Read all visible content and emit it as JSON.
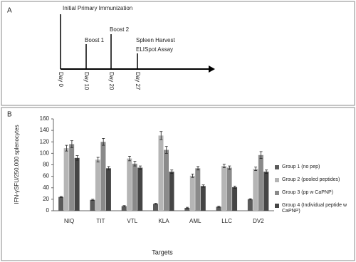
{
  "panel_labels": [
    "A",
    "B"
  ],
  "timeline": {
    "events": [
      "Initial  Primary Immunization",
      "Boost 1",
      "Boost 2",
      "Spleen Harvest",
      "ELISpot Assay"
    ],
    "days": [
      "Day 0",
      "Day 10",
      "Day 20",
      "Day 27"
    ]
  },
  "chart_data": {
    "type": "bar",
    "y_label": "IFN-γSFU/250,000 splenocytes",
    "x_label": "Targets",
    "categories": [
      "NIQ",
      "TIT",
      "VTL",
      "KLA",
      "AML",
      "LLC",
      "DV2"
    ],
    "series": [
      {
        "name": "Group 1 (no pep)",
        "color": "#5a5a5a",
        "values": [
          24,
          19,
          8,
          12,
          5,
          7,
          20
        ],
        "errors": [
          1,
          1,
          1,
          1,
          1,
          1,
          1
        ]
      },
      {
        "name": "Group 2 (pooled peptides)",
        "color": "#b5b5b5",
        "values": [
          109,
          89,
          91,
          131,
          61,
          78,
          73
        ],
        "errors": [
          5,
          4,
          4,
          7,
          3,
          3,
          3
        ]
      },
      {
        "name": "Group 3 (pp w CaPNP)",
        "color": "#8a8a8a",
        "values": [
          116,
          120,
          82,
          106,
          74,
          75,
          97
        ],
        "errors": [
          6,
          6,
          4,
          6,
          3,
          3,
          6
        ]
      },
      {
        "name": "Group 4 (Individual peptide w CaPNP)",
        "color": "#454545",
        "values": [
          92,
          74,
          75,
          68,
          43,
          41,
          68
        ],
        "errors": [
          4,
          3,
          3,
          3,
          2,
          2,
          3
        ]
      }
    ],
    "ylim": [
      0,
      160
    ],
    "yticks": [
      0,
      20,
      40,
      60,
      80,
      100,
      120,
      140,
      160
    ],
    "grid": false,
    "legend": "right"
  }
}
